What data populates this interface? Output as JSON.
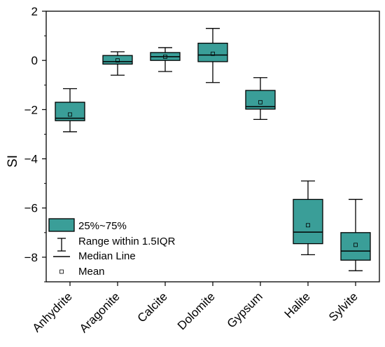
{
  "chart_data": {
    "type": "box",
    "ylabel": "SI",
    "ylim": [
      -9,
      2
    ],
    "yticks": [
      -8,
      -6,
      -4,
      -2,
      0,
      2
    ],
    "ytick_labels": [
      "−8",
      "−6",
      "−4",
      "−2",
      "0",
      "2"
    ],
    "categories": [
      "Anhydrite",
      "Aragonite",
      "Calcite",
      "Dolomite",
      "Gypsum",
      "Halite",
      "Sylvite"
    ],
    "boxes": [
      {
        "min": -2.9,
        "q1": -2.45,
        "median": -2.35,
        "q3": -1.7,
        "max": -1.15,
        "mean": -2.2
      },
      {
        "min": -0.6,
        "q1": -0.15,
        "median": -0.05,
        "q3": 0.2,
        "max": 0.35,
        "mean": 0.0
      },
      {
        "min": -0.45,
        "q1": 0.0,
        "median": 0.15,
        "q3": 0.32,
        "max": 0.52,
        "mean": 0.15
      },
      {
        "min": -0.9,
        "q1": -0.05,
        "median": 0.22,
        "q3": 0.7,
        "max": 1.3,
        "mean": 0.27
      },
      {
        "min": -2.4,
        "q1": -1.98,
        "median": -1.88,
        "q3": -1.22,
        "max": -0.7,
        "mean": -1.7
      },
      {
        "min": -7.9,
        "q1": -7.45,
        "median": -6.98,
        "q3": -5.65,
        "max": -4.9,
        "mean": -6.7
      },
      {
        "min": -8.55,
        "q1": -8.12,
        "median": -7.75,
        "q3": -7.0,
        "max": -5.65,
        "mean": -7.5
      }
    ],
    "box_color": "#3a9e98",
    "legend": {
      "position": "bottom-left",
      "entries": [
        "25%~75%",
        "Range within 1.5IQR",
        "Median Line",
        "Mean"
      ]
    }
  }
}
